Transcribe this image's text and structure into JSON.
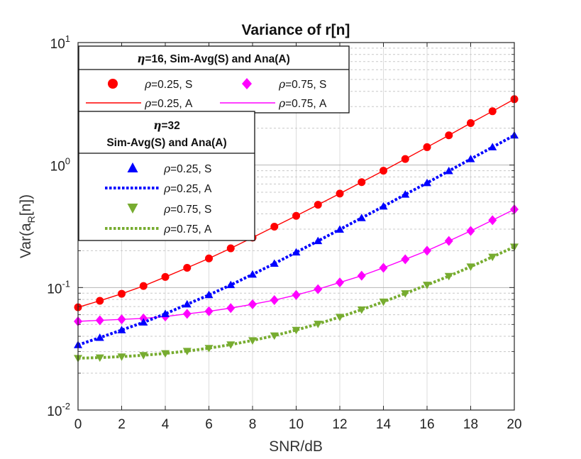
{
  "chart_data": {
    "type": "line",
    "title": "Variance of r[n]",
    "xlabel": "SNR/dB",
    "ylabel": "Var(a_R[n])",
    "ylabel_main": "Var(a",
    "ylabel_sub": "R",
    "ylabel_tail": "[n])",
    "xlim": [
      0,
      20
    ],
    "ylim": [
      0.01,
      10
    ],
    "yscale": "log",
    "grid": true,
    "x_ticks": [
      "0",
      "2",
      "4",
      "6",
      "8",
      "10",
      "12",
      "14",
      "16",
      "18",
      "20"
    ],
    "y_ticks": [
      {
        "base": "10",
        "exp": "1"
      },
      {
        "base": "10",
        "exp": "0"
      },
      {
        "base": "10",
        "exp": "-1"
      },
      {
        "base": "10",
        "exp": "-2"
      }
    ],
    "x": [
      0,
      1,
      2,
      3,
      4,
      5,
      6,
      7,
      8,
      9,
      10,
      11,
      12,
      13,
      14,
      15,
      16,
      17,
      18,
      19,
      20
    ],
    "series": [
      {
        "name": "ρ=0.25, S",
        "eta": "16",
        "kind": "S",
        "color": "#ff0000",
        "marker": "circle",
        "values": [
          0.069,
          0.078,
          0.089,
          0.103,
          0.122,
          0.145,
          0.173,
          0.209,
          0.256,
          0.314,
          0.385,
          0.474,
          0.585,
          0.725,
          0.9,
          1.12,
          1.4,
          1.75,
          2.2,
          2.75,
          3.45
        ]
      },
      {
        "name": "ρ=0.75, S",
        "eta": "16",
        "kind": "S",
        "color": "#ff00ff",
        "marker": "diamond",
        "values": [
          0.053,
          0.054,
          0.055,
          0.056,
          0.058,
          0.061,
          0.064,
          0.068,
          0.073,
          0.079,
          0.087,
          0.097,
          0.11,
          0.125,
          0.145,
          0.17,
          0.2,
          0.24,
          0.29,
          0.355,
          0.435
        ]
      },
      {
        "name": "ρ=0.25, A",
        "eta": "16",
        "kind": "A",
        "color": "#ff0000",
        "line": "solid",
        "values": [
          0.069,
          0.078,
          0.089,
          0.103,
          0.122,
          0.145,
          0.173,
          0.209,
          0.256,
          0.314,
          0.385,
          0.474,
          0.585,
          0.725,
          0.9,
          1.12,
          1.4,
          1.75,
          2.2,
          2.75,
          3.45
        ]
      },
      {
        "name": "ρ=0.75, A",
        "eta": "16",
        "kind": "A",
        "color": "#ff00ff",
        "line": "solid",
        "values": [
          0.053,
          0.054,
          0.055,
          0.056,
          0.058,
          0.061,
          0.064,
          0.068,
          0.073,
          0.079,
          0.087,
          0.097,
          0.11,
          0.125,
          0.145,
          0.17,
          0.2,
          0.24,
          0.29,
          0.355,
          0.435
        ]
      },
      {
        "name": "ρ=0.25, S",
        "eta": "32",
        "kind": "S",
        "color": "#0000ff",
        "marker": "triangle-up",
        "values": [
          0.034,
          0.039,
          0.045,
          0.052,
          0.061,
          0.073,
          0.087,
          0.105,
          0.128,
          0.157,
          0.194,
          0.24,
          0.298,
          0.37,
          0.46,
          0.575,
          0.715,
          0.895,
          1.12,
          1.4,
          1.75
        ]
      },
      {
        "name": "ρ=0.25, A",
        "eta": "32",
        "kind": "A",
        "color": "#0000ff",
        "line": "dotted",
        "values": [
          0.034,
          0.039,
          0.045,
          0.052,
          0.061,
          0.073,
          0.087,
          0.105,
          0.128,
          0.157,
          0.194,
          0.24,
          0.298,
          0.37,
          0.46,
          0.575,
          0.715,
          0.895,
          1.12,
          1.4,
          1.75
        ]
      },
      {
        "name": "ρ=0.75, S",
        "eta": "32",
        "kind": "S",
        "color": "#77ac30",
        "marker": "triangle-down",
        "values": [
          0.0265,
          0.0268,
          0.0273,
          0.028,
          0.029,
          0.0303,
          0.032,
          0.0342,
          0.037,
          0.0405,
          0.045,
          0.0505,
          0.0575,
          0.066,
          0.0765,
          0.0895,
          0.105,
          0.124,
          0.148,
          0.178,
          0.215
        ]
      },
      {
        "name": "ρ=0.75, A",
        "eta": "32",
        "kind": "A",
        "color": "#77ac30",
        "line": "dotted",
        "values": [
          0.0265,
          0.0268,
          0.0273,
          0.028,
          0.029,
          0.0303,
          0.032,
          0.0342,
          0.037,
          0.0405,
          0.045,
          0.0505,
          0.0575,
          0.066,
          0.0765,
          0.0895,
          0.105,
          0.124,
          0.148,
          0.178,
          0.215
        ]
      }
    ],
    "legend_1": {
      "placement": "top-left",
      "eta_symbol": "η",
      "header": "=16, Sim-Avg(S) and Ana(A)",
      "entries": [
        {
          "rho": "ρ",
          "label": "=0.25, S"
        },
        {
          "rho": "ρ",
          "label": "=0.75, S"
        },
        {
          "rho": "ρ",
          "label": "=0.25, A"
        },
        {
          "rho": "ρ",
          "label": "=0.75, A"
        }
      ]
    },
    "legend_2": {
      "placement": "left",
      "eta_symbol": "η",
      "header_line1": "=32",
      "header_line2": "Sim-Avg(S) and Ana(A)",
      "entries": [
        {
          "rho": "ρ",
          "label": "=0.25, S"
        },
        {
          "rho": "ρ",
          "label": "=0.25, A"
        },
        {
          "rho": "ρ",
          "label": "=0.75, S"
        },
        {
          "rho": "ρ",
          "label": "=0.75, A"
        }
      ]
    }
  }
}
